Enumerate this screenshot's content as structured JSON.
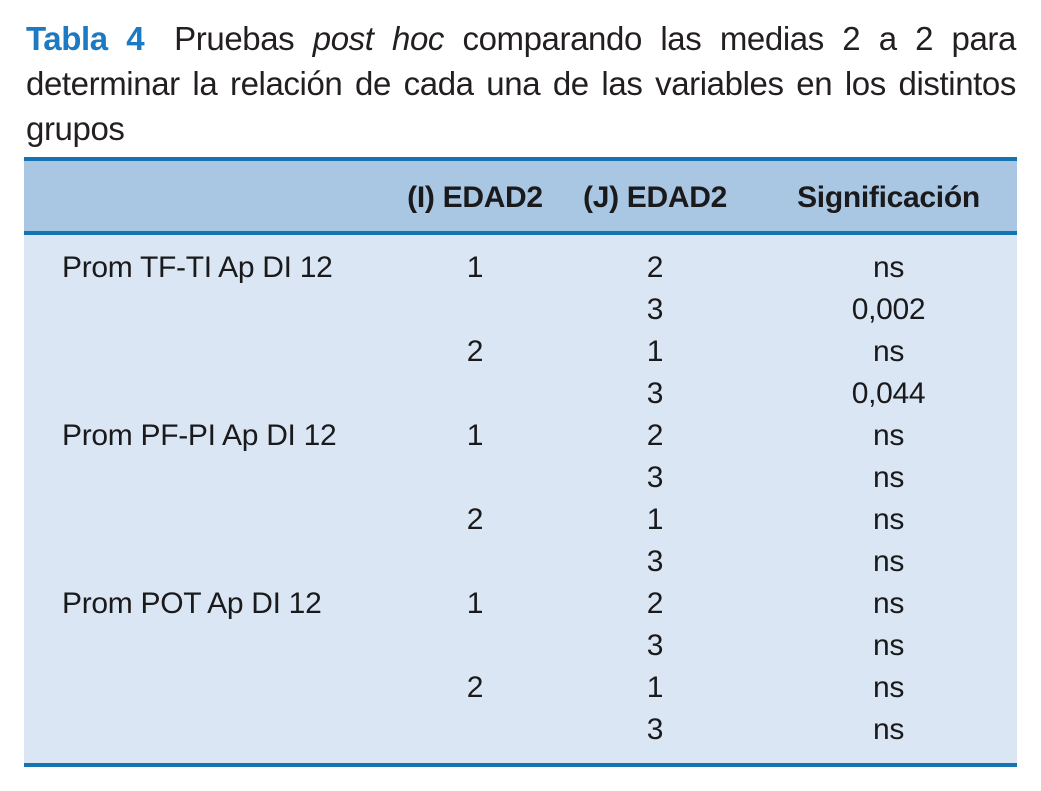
{
  "caption": {
    "label": "Tabla 4",
    "text_before_italic": "Pruebas ",
    "italic": "post hoc",
    "text_after_italic": " comparando las medias 2 a 2 para determinar la relación de cada una de las variables en los distintos grupos"
  },
  "colors": {
    "accent_rule": "#1573b2",
    "header_background": "#a9c6e2",
    "body_background": "#dae6f3",
    "caption_label_blue": "#1d79c1",
    "text": "#1a1a1c"
  },
  "table": {
    "columns": [
      "",
      "(I) EDAD2",
      "(J) EDAD2",
      "Significación"
    ],
    "rows": [
      {
        "variable": "Prom TF-TI Ap DI 12",
        "i": "1",
        "j": "2",
        "sig": "ns"
      },
      {
        "variable": "",
        "i": "",
        "j": "3",
        "sig": "0,002"
      },
      {
        "variable": "",
        "i": "2",
        "j": "1",
        "sig": "ns"
      },
      {
        "variable": "",
        "i": "",
        "j": "3",
        "sig": "0,044"
      },
      {
        "variable": "Prom PF-PI Ap DI 12",
        "i": "1",
        "j": "2",
        "sig": "ns"
      },
      {
        "variable": "",
        "i": "",
        "j": "3",
        "sig": "ns"
      },
      {
        "variable": "",
        "i": "2",
        "j": "1",
        "sig": "ns"
      },
      {
        "variable": "",
        "i": "",
        "j": "3",
        "sig": "ns"
      },
      {
        "variable": "Prom POT Ap DI 12",
        "i": "1",
        "j": "2",
        "sig": "ns"
      },
      {
        "variable": "",
        "i": "",
        "j": "3",
        "sig": "ns"
      },
      {
        "variable": "",
        "i": "2",
        "j": "1",
        "sig": "ns"
      },
      {
        "variable": "",
        "i": "",
        "j": "3",
        "sig": "ns"
      }
    ]
  },
  "chart_data": {
    "type": "table",
    "title": "Tabla 4. Pruebas post hoc comparando las medias 2 a 2 para determinar la relación de cada una de las variables en los distintos grupos",
    "columns": [
      "Variable",
      "(I) EDAD2",
      "(J) EDAD2",
      "Significación"
    ],
    "rows": [
      [
        "Prom TF-TI Ap DI 12",
        "1",
        "2",
        "ns"
      ],
      [
        "",
        "",
        "3",
        "0,002"
      ],
      [
        "",
        "2",
        "1",
        "ns"
      ],
      [
        "",
        "",
        "3",
        "0,044"
      ],
      [
        "Prom PF-PI Ap DI 12",
        "1",
        "2",
        "ns"
      ],
      [
        "",
        "",
        "3",
        "ns"
      ],
      [
        "",
        "2",
        "1",
        "ns"
      ],
      [
        "",
        "",
        "3",
        "ns"
      ],
      [
        "Prom POT Ap DI 12",
        "1",
        "2",
        "ns"
      ],
      [
        "",
        "",
        "3",
        "ns"
      ],
      [
        "",
        "2",
        "1",
        "ns"
      ],
      [
        "",
        "",
        "3",
        "ns"
      ]
    ]
  }
}
